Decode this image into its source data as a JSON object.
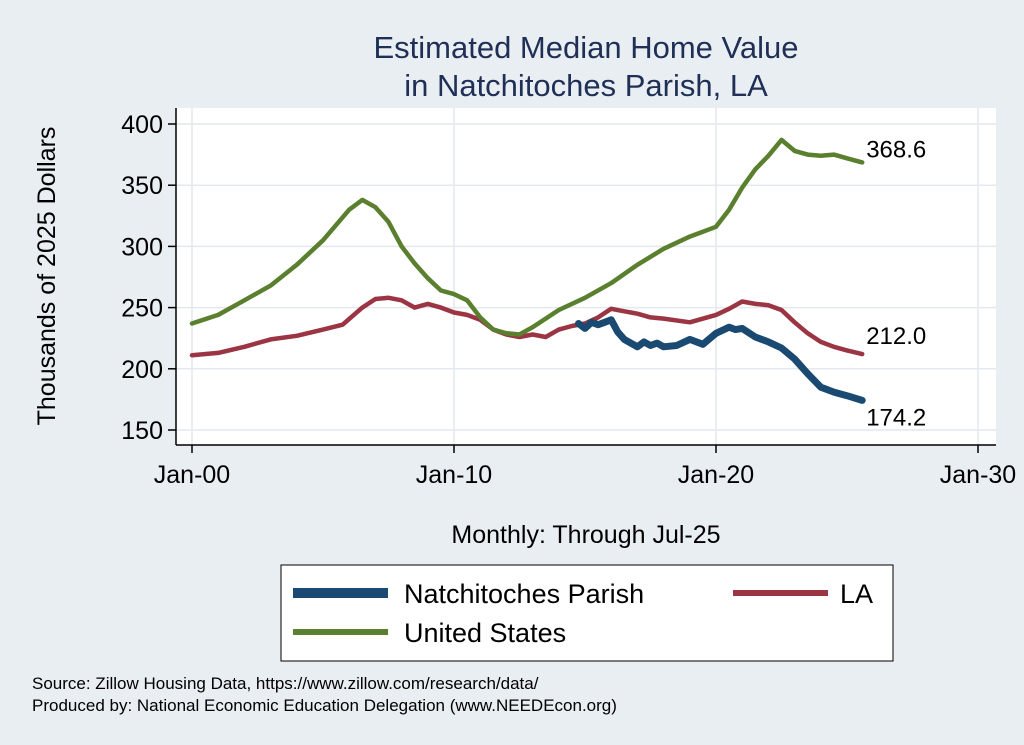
{
  "chart_data": {
    "type": "line",
    "title": "Estimated Median Home Value",
    "subtitle": "in Natchitoches Parish, LA",
    "ylabel": "Thousands of 2025 Dollars",
    "xlabel": "Monthly: Through Jul-25",
    "x_ticks": [
      {
        "label": "Jan-00",
        "value": 2000
      },
      {
        "label": "Jan-10",
        "value": 2010
      },
      {
        "label": "Jan-20",
        "value": 2020
      },
      {
        "label": "Jan-30",
        "value": 2030
      }
    ],
    "y_ticks": [
      150,
      200,
      250,
      300,
      350,
      400
    ],
    "xlim": [
      2000,
      2030
    ],
    "ylim": [
      150,
      400
    ],
    "series": [
      {
        "name": "Natchitoches Parish",
        "color": "#1a4a72",
        "end_label": "174.2",
        "x": [
          2014.75,
          2015.0,
          2015.25,
          2015.5,
          2015.75,
          2016.0,
          2016.25,
          2016.5,
          2017.0,
          2017.25,
          2017.5,
          2017.75,
          2018.0,
          2018.5,
          2019.0,
          2019.5,
          2020.0,
          2020.5,
          2020.75,
          2021.0,
          2021.5,
          2022.0,
          2022.5,
          2023.0,
          2023.5,
          2024.0,
          2024.5,
          2025.0,
          2025.58
        ],
        "values": [
          237,
          233,
          238,
          236,
          238,
          240,
          230,
          224,
          218,
          222,
          219,
          221,
          218,
          219,
          224,
          220,
          229,
          234,
          232,
          233,
          226,
          222,
          217,
          208,
          196,
          185,
          181,
          178,
          174.2
        ]
      },
      {
        "name": "LA",
        "color": "#9b3544",
        "end_label": "212.0",
        "x": [
          2000.0,
          2001.0,
          2002.0,
          2003.0,
          2004.0,
          2005.0,
          2005.75,
          2006.5,
          2007.0,
          2007.5,
          2008.0,
          2008.5,
          2009.0,
          2009.5,
          2010.0,
          2010.5,
          2011.0,
          2011.5,
          2012.0,
          2012.5,
          2013.0,
          2013.5,
          2014.0,
          2014.5,
          2015.0,
          2015.5,
          2016.0,
          2016.5,
          2017.0,
          2017.5,
          2018.0,
          2019.0,
          2020.0,
          2020.5,
          2021.0,
          2021.5,
          2022.0,
          2022.5,
          2023.0,
          2023.5,
          2024.0,
          2024.5,
          2025.0,
          2025.58
        ],
        "values": [
          211,
          213,
          218,
          224,
          227,
          232,
          236,
          250,
          257,
          258,
          256,
          250,
          253,
          250,
          246,
          244,
          240,
          232,
          228,
          226,
          228,
          226,
          232,
          235,
          237,
          242,
          249,
          247,
          245,
          242,
          241,
          238,
          244,
          249,
          255,
          253,
          252,
          248,
          238,
          229,
          222,
          218,
          215,
          212.0
        ]
      },
      {
        "name": "United States",
        "color": "#5a7f2e",
        "end_label": "368.6",
        "x": [
          2000.0,
          2001.0,
          2002.0,
          2003.0,
          2004.0,
          2005.0,
          2006.0,
          2006.5,
          2007.0,
          2007.5,
          2008.0,
          2008.5,
          2009.0,
          2009.5,
          2010.0,
          2010.5,
          2011.0,
          2011.5,
          2012.0,
          2012.5,
          2013.0,
          2014.0,
          2015.0,
          2016.0,
          2017.0,
          2018.0,
          2019.0,
          2020.0,
          2020.5,
          2021.0,
          2021.5,
          2022.0,
          2022.5,
          2023.0,
          2023.5,
          2024.0,
          2024.5,
          2025.0,
          2025.58
        ],
        "values": [
          237,
          244,
          256,
          268,
          285,
          305,
          330,
          338,
          332,
          320,
          300,
          286,
          274,
          264,
          261,
          256,
          242,
          232,
          229,
          228,
          234,
          248,
          258,
          270,
          285,
          298,
          308,
          316,
          330,
          348,
          363,
          374,
          387,
          378,
          375,
          374,
          375,
          372,
          368.6
        ]
      }
    ],
    "legend": [
      "Natchitoches Parish",
      "LA",
      "United States"
    ]
  },
  "notes": {
    "source": "Source: Zillow Housing Data, https://www.zillow.com/research/data/",
    "produced_by": "Produced by: National Economic Education Delegation (www.NEEDEcon.org)"
  },
  "colors": {
    "background": "#e9eef3",
    "plot_background": "#ffffff",
    "grid": "#e4e9ee",
    "title": "#1f2f55"
  }
}
